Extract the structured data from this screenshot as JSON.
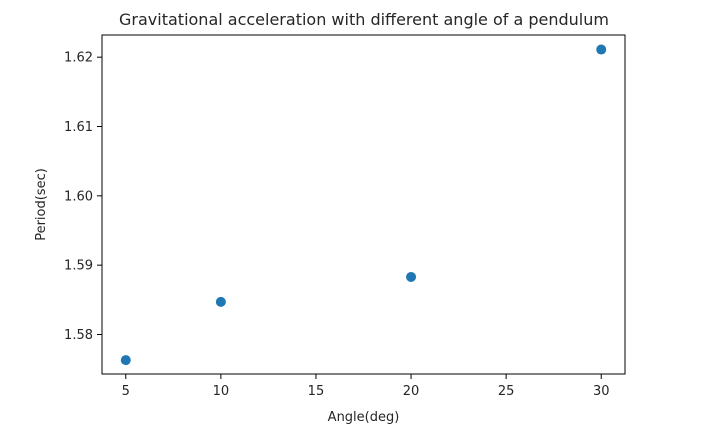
{
  "chart_data": {
    "type": "scatter",
    "title": "Gravitational acceleration with different angle of a pendulum",
    "xlabel": "Angle(deg)",
    "ylabel": "Period(sec)",
    "xlim": [
      3.75,
      31.25
    ],
    "ylim": [
      1.5743,
      1.6232
    ],
    "xticks": [
      5,
      10,
      15,
      20,
      25,
      30
    ],
    "xtick_labels": [
      "5",
      "10",
      "15",
      "20",
      "25",
      "30"
    ],
    "yticks": [
      1.58,
      1.59,
      1.6,
      1.61,
      1.62
    ],
    "ytick_labels": [
      "1.58",
      "1.59",
      "1.60",
      "1.61",
      "1.62"
    ],
    "grid": false,
    "points": [
      {
        "x": 5,
        "y": 1.5763
      },
      {
        "x": 10,
        "y": 1.5847
      },
      {
        "x": 20,
        "y": 1.5883
      },
      {
        "x": 30,
        "y": 1.6211
      }
    ],
    "marker_color": "#1f77b4"
  }
}
